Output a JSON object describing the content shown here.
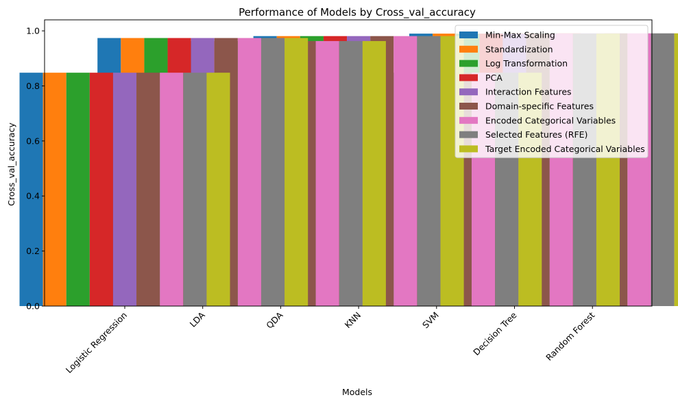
{
  "chart_data": {
    "type": "bar",
    "title": "Performance of Models by Cross_val_accuracy",
    "xlabel": "Models",
    "ylabel": "Cross_val_accuracy",
    "ylim": [
      0,
      1.04
    ],
    "yticks": [
      "0.0",
      "0.2",
      "0.4",
      "0.6",
      "0.8",
      "1.0"
    ],
    "categories": [
      "Logistic Regression",
      "LDA",
      "QDA",
      "KNN",
      "SVM",
      "Decision Tree",
      "Random Forest"
    ],
    "legend_position": "top-right",
    "grid": false,
    "series": [
      {
        "name": "Min-Max Scaling",
        "color": "#1f77b4",
        "values": [
          0.848,
          0.974,
          0.963,
          0.981,
          0.848,
          0.99,
          0.991
        ]
      },
      {
        "name": "Standardization",
        "color": "#ff7f0e",
        "values": [
          0.848,
          0.974,
          0.963,
          0.981,
          0.848,
          0.99,
          0.991
        ]
      },
      {
        "name": "Log Transformation",
        "color": "#2ca02c",
        "values": [
          0.848,
          0.974,
          0.963,
          0.981,
          0.848,
          0.99,
          0.991
        ]
      },
      {
        "name": "PCA",
        "color": "#d62728",
        "values": [
          0.848,
          0.974,
          0.963,
          0.981,
          0.848,
          0.99,
          0.991
        ]
      },
      {
        "name": "Interaction Features",
        "color": "#9467bd",
        "values": [
          0.848,
          0.974,
          0.963,
          0.981,
          0.848,
          0.99,
          0.991
        ]
      },
      {
        "name": "Domain-specific Features",
        "color": "#8c564b",
        "values": [
          0.848,
          0.974,
          0.963,
          0.981,
          0.848,
          0.99,
          0.991
        ]
      },
      {
        "name": "Encoded Categorical Variables",
        "color": "#e377c2",
        "values": [
          0.848,
          0.974,
          0.963,
          0.981,
          0.848,
          0.99,
          0.991
        ]
      },
      {
        "name": "Selected Features (RFE)",
        "color": "#7f7f7f",
        "values": [
          0.848,
          0.974,
          0.963,
          0.981,
          0.848,
          0.99,
          0.991
        ]
      },
      {
        "name": "Target Encoded Categorical Variables",
        "color": "#bcbd22",
        "values": [
          0.848,
          0.974,
          0.963,
          0.981,
          0.848,
          0.99,
          0.991
        ]
      }
    ]
  }
}
